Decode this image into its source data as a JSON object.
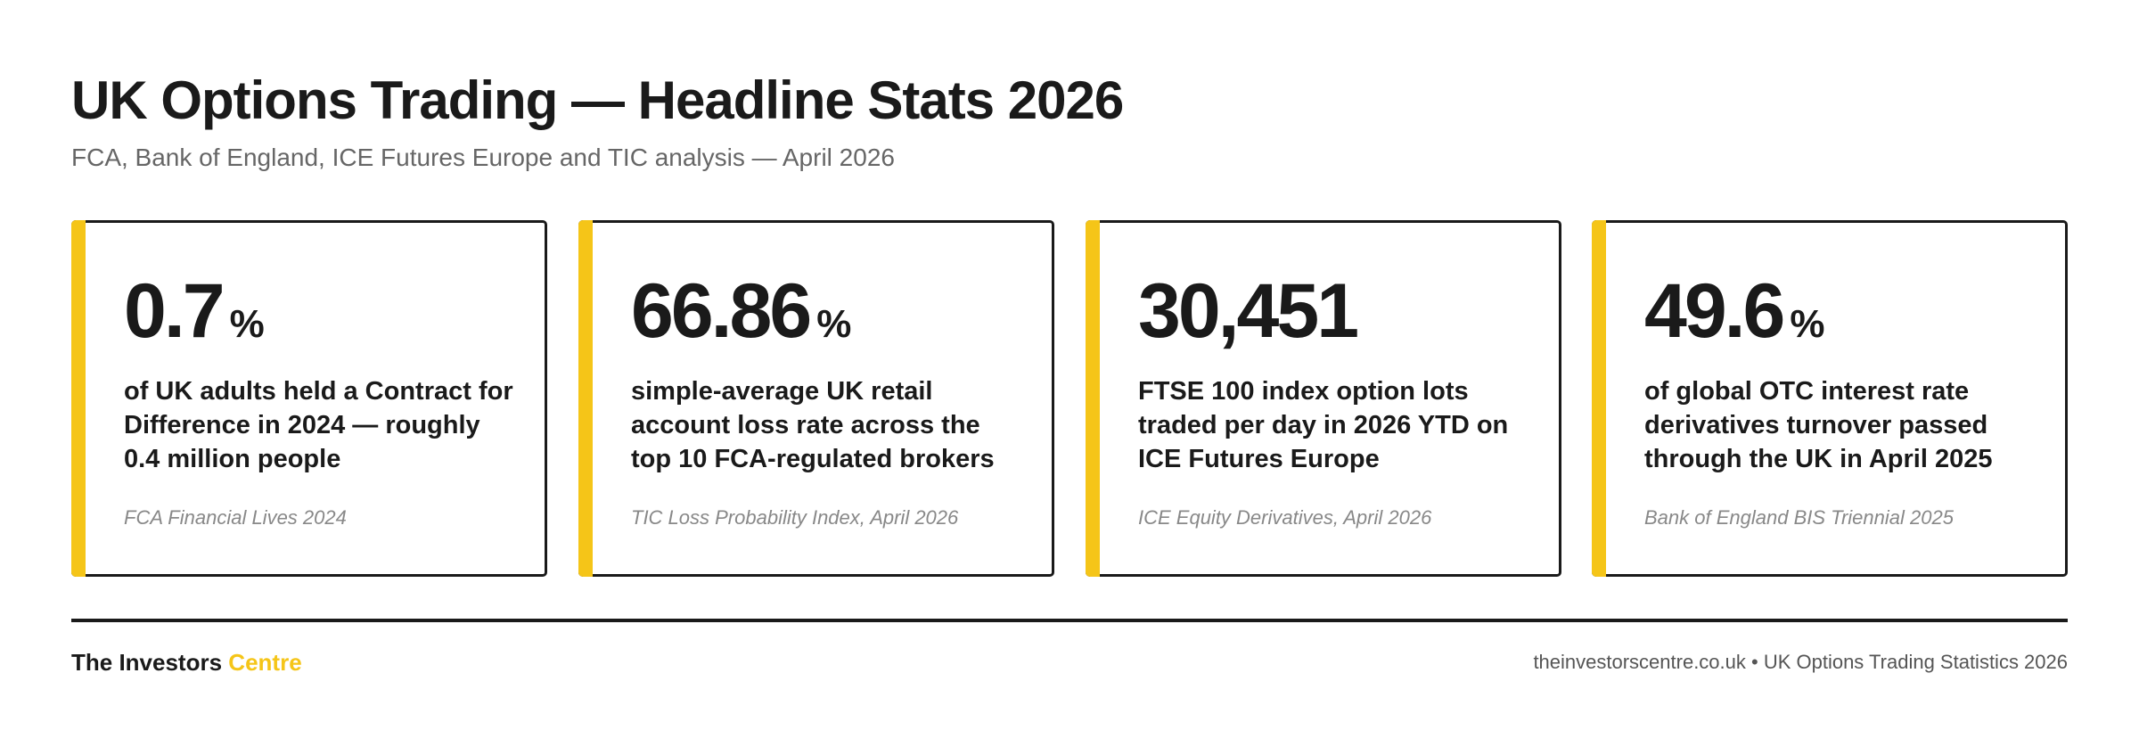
{
  "header": {
    "title": "UK Options Trading — Headline Stats 2026",
    "subtitle": "FCA, Bank of England, ICE Futures Europe and TIC analysis — April 2026"
  },
  "colors": {
    "accent": "#f5c518",
    "text": "#1a1a1a",
    "muted": "#666666"
  },
  "cards": [
    {
      "value": "0.7",
      "unit": "%",
      "description": "of UK adults held a Contract for Difference in 2024 — roughly 0.4 million people",
      "source": "FCA Financial Lives 2024"
    },
    {
      "value": "66.86",
      "unit": "%",
      "description": "simple-average UK retail account loss rate across the top 10 FCA-regulated brokers",
      "source": "TIC Loss Probability Index, April 2026"
    },
    {
      "value": "30,451",
      "unit": "",
      "description": "FTSE 100 index option lots traded per day in 2026 YTD on ICE Futures Europe",
      "source": "ICE Equity Derivatives, April 2026"
    },
    {
      "value": "49.6",
      "unit": "%",
      "description": "of global OTC interest rate derivatives turnover passed through the UK in April 2025",
      "source": "Bank of England BIS Triennial 2025"
    }
  ],
  "footer": {
    "brand_primary": "The Investors",
    "brand_accent": "Centre",
    "credit": "theinvestorscentre.co.uk • UK Options Trading Statistics 2026"
  }
}
